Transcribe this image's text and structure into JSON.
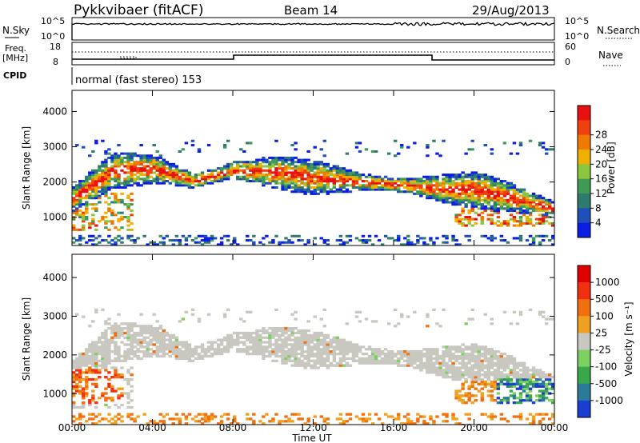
{
  "header": {
    "station": "Pykkvibaer (fitACF)",
    "beam": "Beam 14",
    "date": "29/Aug/2013"
  },
  "status_panels": {
    "nsky_label": "N.Sky",
    "nsearch_label": "N.Search",
    "nsky_ticks": [
      "10^5",
      "10^0"
    ],
    "nsearch_ticks": [
      "10^5",
      "10^0"
    ],
    "freq_label_line1": "Freq.",
    "freq_label_line2": "[MHz]",
    "freq_ticks": [
      "18",
      "8"
    ],
    "nave_label": "Nave",
    "nave_ticks": [
      "60",
      "0"
    ],
    "cpid_label": "CPID",
    "cpid_text": "normal (fast stereo) 153"
  },
  "colors": {
    "power_scale": [
      "#0a1ee6",
      "#1f4fb8",
      "#2f7a6e",
      "#3f9a55",
      "#8cc63f",
      "#f0b000",
      "#f07a00",
      "#f04010",
      "#e81010"
    ],
    "velocity_scale": [
      "#1a3fd0",
      "#2a7a9a",
      "#3aa84a",
      "#7cd060",
      "#c8c8c0",
      "#f0a020",
      "#f07010",
      "#f03010",
      "#e00000"
    ]
  },
  "chart_data": [
    {
      "type": "heatmap",
      "title": "",
      "xlabel": "Time UT",
      "ylabel": "Slant Range [km]",
      "xlim": [
        "00:00",
        "00:00"
      ],
      "x_ticks": [
        "00:00",
        "04:00",
        "08:00",
        "12:00",
        "16:00",
        "20:00",
        "00:00"
      ],
      "ylim": [
        200,
        4600
      ],
      "y_ticks": [
        1000,
        2000,
        3000,
        4000
      ],
      "colorbar": {
        "label": "Power [dB]",
        "ticks": [
          4,
          8,
          12,
          16,
          20,
          24,
          28
        ]
      },
      "dominant_band_km": [
        {
          "x": "00:00",
          "range": 1500
        },
        {
          "x": "02:00",
          "range": 2300
        },
        {
          "x": "04:00",
          "range": 2350
        },
        {
          "x": "06:00",
          "range": 2000
        },
        {
          "x": "08:00",
          "range": 2300
        },
        {
          "x": "10:00",
          "range": 2250
        },
        {
          "x": "12:00",
          "range": 2100
        },
        {
          "x": "14:00",
          "range": 2000
        },
        {
          "x": "16:00",
          "range": 1900
        },
        {
          "x": "18:00",
          "range": 1800
        },
        {
          "x": "20:00",
          "range": 1750
        },
        {
          "x": "22:00",
          "range": 1500
        },
        {
          "x": "24:00",
          "range": 1200
        }
      ]
    },
    {
      "type": "heatmap",
      "title": "",
      "xlabel": "Time UT",
      "ylabel": "Slant Range [km]",
      "xlim": [
        "00:00",
        "00:00"
      ],
      "x_ticks": [
        "00:00",
        "04:00",
        "08:00",
        "12:00",
        "16:00",
        "20:00",
        "00:00"
      ],
      "ylim": [
        200,
        4600
      ],
      "y_ticks": [
        1000,
        2000,
        3000,
        4000
      ],
      "colorbar": {
        "label": "Velocity [m s⁻¹]",
        "ticks": [
          1000,
          500,
          100,
          25,
          -25,
          -100,
          -500,
          -1000
        ]
      }
    }
  ]
}
